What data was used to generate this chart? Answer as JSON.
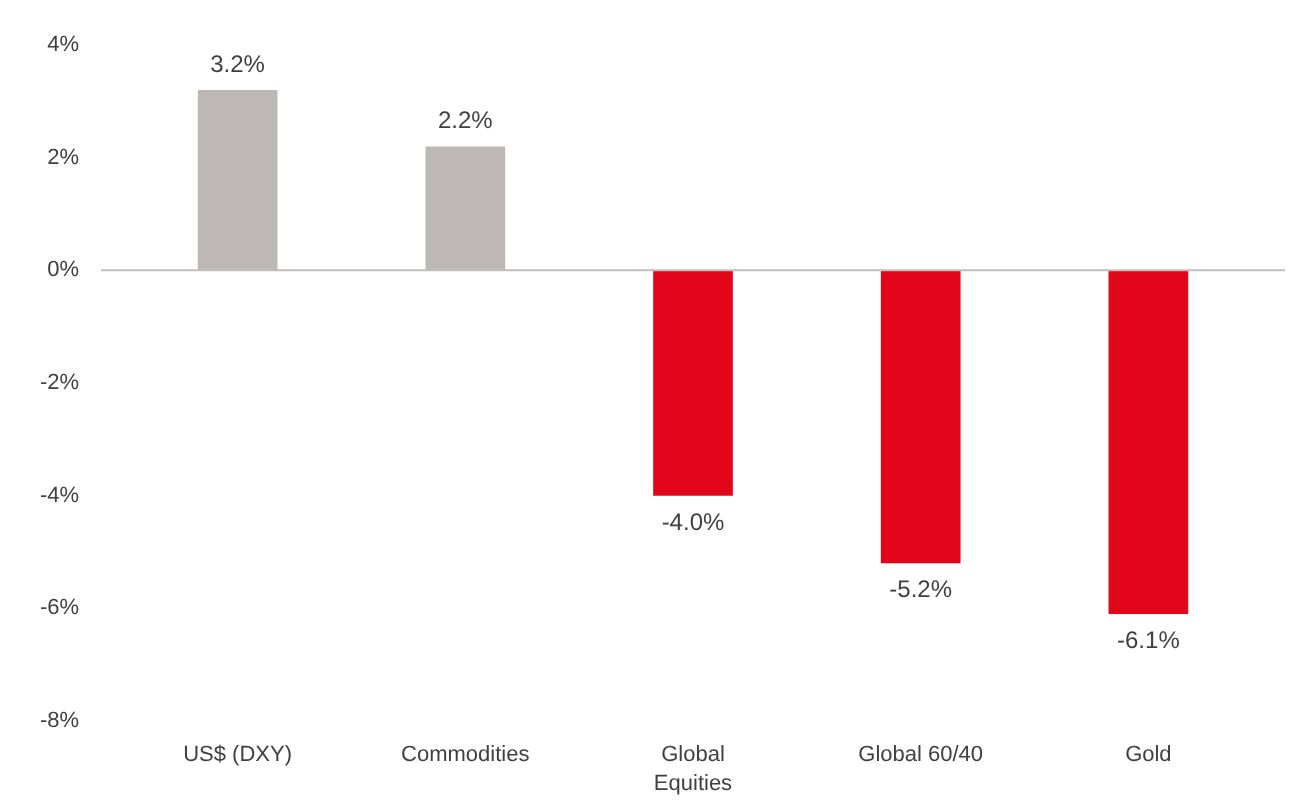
{
  "chart_data": {
    "type": "bar",
    "categories": [
      "US$ (DXY)",
      "Commodities",
      "Global Equities",
      "Global 60/40",
      "Gold"
    ],
    "values": [
      3.2,
      2.2,
      -4.0,
      -5.2,
      -6.1
    ],
    "colors": [
      "#bdb7b6",
      "#bdb7b6",
      "#e2061b",
      "#e2061b",
      "#e2061b"
    ],
    "value_labels": [
      "3.2%",
      "2.2%",
      "-4.0%",
      "-5.2%",
      "-6.1%"
    ],
    "ylim": [
      -8,
      4
    ],
    "yticks": [
      {
        "value": -8,
        "label": "-8%"
      },
      {
        "value": -6,
        "label": "-6%"
      },
      {
        "value": -4,
        "label": "-4%"
      },
      {
        "value": -2,
        "label": "-2%"
      },
      {
        "value": 0,
        "label": "0%"
      },
      {
        "value": 2,
        "label": "2%"
      },
      {
        "value": 4,
        "label": "4%"
      }
    ],
    "ref_lines": [
      {
        "axis": "y",
        "value": 0,
        "color": "#bfbfbf"
      }
    ]
  }
}
